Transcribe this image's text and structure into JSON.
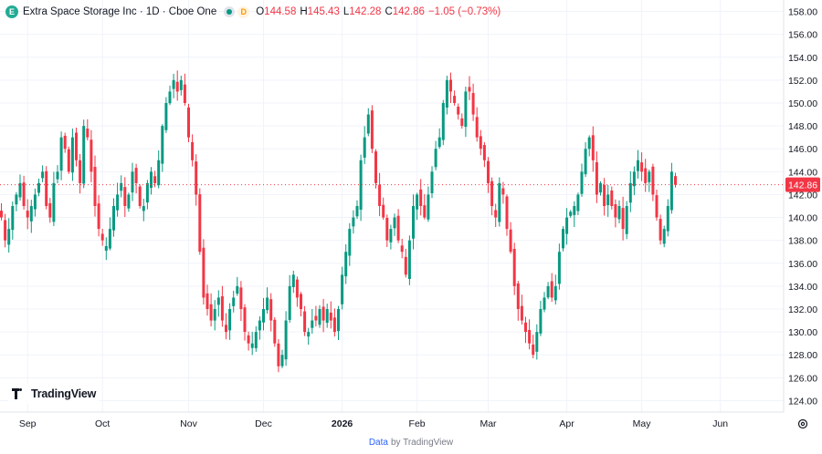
{
  "legend": {
    "badge": "E",
    "title": "Extra Space Storage Inc · 1D · Cboe One",
    "d_badge": "D",
    "o_label": "O",
    "o_value": "144.58",
    "h_label": "H",
    "h_value": "145.43",
    "l_label": "L",
    "l_value": "142.28",
    "c_label": "C",
    "c_value": "142.86",
    "change": "−1.05 (−0.73%)"
  },
  "logo": {
    "text": "TradingView"
  },
  "footer": {
    "link": "Data",
    "rest": "by TradingView"
  },
  "colors": {
    "up": "#089981",
    "down": "#f23645",
    "grid": "#f0f3fa",
    "axis_text": "#131722"
  },
  "chart_data": {
    "type": "candlestick",
    "title": "Extra Space Storage Inc · 1D · Cboe One",
    "ylim": [
      123,
      159
    ],
    "y_ticks": [
      "124.00",
      "126.00",
      "128.00",
      "130.00",
      "132.00",
      "134.00",
      "136.00",
      "138.00",
      "140.00",
      "142.00",
      "144.00",
      "146.00",
      "148.00",
      "150.00",
      "152.00",
      "154.00",
      "156.00",
      "158.00"
    ],
    "x_labels": [
      {
        "label": "Sep",
        "index": 7
      },
      {
        "label": "Oct",
        "index": 27
      },
      {
        "label": "Nov",
        "index": 50
      },
      {
        "label": "Dec",
        "index": 70
      },
      {
        "label": "2026",
        "index": 91
      },
      {
        "label": "Feb",
        "index": 111
      },
      {
        "label": "Mar",
        "index": 130
      },
      {
        "label": "Apr",
        "index": 151
      },
      {
        "label": "May",
        "index": 171
      },
      {
        "label": "Jun",
        "index": 192
      }
    ],
    "last_price": "142.86",
    "last_value": 142.86,
    "closes": [
      140,
      138,
      139,
      141,
      142,
      143,
      141,
      140,
      141,
      142,
      143,
      144,
      141,
      140,
      143,
      144,
      147,
      146,
      144,
      147,
      145,
      143,
      148,
      147,
      144,
      141,
      139,
      138,
      137.5,
      139,
      141,
      142,
      143,
      141,
      142,
      144,
      143,
      141,
      141,
      143,
      144,
      143,
      145,
      148,
      150,
      151,
      152,
      151,
      152,
      150,
      147,
      145,
      142,
      137,
      133,
      132,
      131,
      132,
      133,
      131,
      130,
      132,
      133,
      134,
      132,
      130,
      129,
      129,
      130,
      131,
      132,
      133,
      131,
      129,
      127,
      128,
      131,
      134,
      135,
      133,
      132,
      130,
      130,
      131,
      131,
      132,
      131,
      132,
      131,
      130,
      132,
      135,
      137,
      139,
      140,
      141,
      145,
      147,
      149,
      146,
      143,
      141,
      140,
      138,
      139,
      140,
      138,
      137,
      135,
      138,
      141,
      142,
      141,
      140,
      142,
      144,
      146,
      147,
      150,
      152,
      151,
      150,
      149,
      148,
      151,
      151,
      149,
      147,
      146,
      145,
      143,
      141,
      140,
      143,
      142,
      139,
      137,
      134,
      132,
      131,
      130,
      129,
      128,
      130,
      132,
      133,
      134,
      133,
      134,
      137,
      139,
      140,
      140.5,
      141,
      142,
      144,
      146,
      147,
      145,
      142,
      143,
      141,
      142,
      141,
      140,
      141,
      139,
      141,
      143,
      144,
      145,
      144,
      143,
      144,
      142,
      140,
      138,
      139,
      141,
      144,
      142.86
    ]
  }
}
